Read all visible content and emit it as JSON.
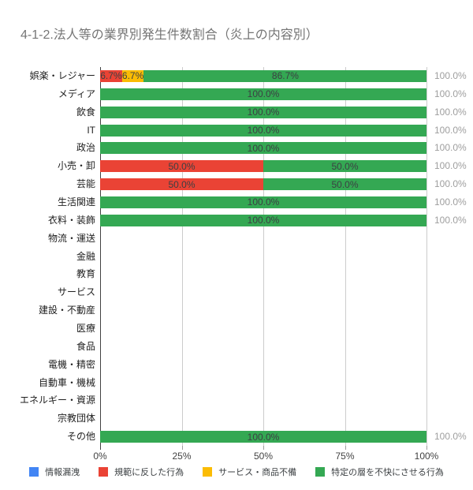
{
  "title": "4-1-2.法人等の業界別発生件数割合（炎上の内容別）",
  "theme": {
    "background": "#ffffff",
    "title_color": "#757575",
    "category_label_color": "#212121",
    "axis_label_color": "#424242",
    "grid_color": "#cccccc",
    "axis_line_color": "#424242",
    "tick_color": "#9e9e9e",
    "bar_label_color": "#3c4043",
    "total_label_color": "#9e9e9e",
    "legend_text_color": "#3c4043"
  },
  "chart_data": {
    "type": "bar",
    "orientation": "horizontal",
    "stacked": true,
    "unit": "%",
    "xlim": [
      0,
      100
    ],
    "grid": true,
    "legend_position": "bottom",
    "title": "4-1-2.法人等の業界別発生件数割合（炎上の内容別）",
    "x_ticks": [
      {
        "value": 0,
        "label": "0%"
      },
      {
        "value": 25,
        "label": "25%"
      },
      {
        "value": 50,
        "label": "50%"
      },
      {
        "value": 75,
        "label": "75%"
      },
      {
        "value": 100,
        "label": "100%"
      }
    ],
    "categories": [
      "娯楽・レジャー",
      "メディア",
      "飲食",
      "IT",
      "政治",
      "小売・卸",
      "芸能",
      "生活関連",
      "衣料・装飾",
      "物流・運送",
      "金融",
      "教育",
      "サービス",
      "建設・不動産",
      "医療",
      "食品",
      "電機・精密",
      "自動車・機械",
      "エネルギー・資源",
      "宗教団体",
      "その他"
    ],
    "series": [
      {
        "name": "情報漏洩",
        "color": "#4285f4",
        "values": [
          0,
          0,
          0,
          0,
          0,
          0,
          0,
          0,
          0,
          0,
          0,
          0,
          0,
          0,
          0,
          0,
          0,
          0,
          0,
          0,
          0
        ]
      },
      {
        "name": "規範に反した行為",
        "color": "#ea4335",
        "values": [
          6.7,
          0,
          0,
          0,
          0,
          50,
          50,
          0,
          0,
          0,
          0,
          0,
          0,
          0,
          0,
          0,
          0,
          0,
          0,
          0,
          0
        ]
      },
      {
        "name": "サービス・商品不備",
        "color": "#fbbc04",
        "values": [
          6.7,
          0,
          0,
          0,
          0,
          0,
          0,
          0,
          0,
          0,
          0,
          0,
          0,
          0,
          0,
          0,
          0,
          0,
          0,
          0,
          0
        ]
      },
      {
        "name": "特定の層を不快にさせる行為",
        "color": "#34a853",
        "values": [
          86.7,
          100,
          100,
          100,
          100,
          50,
          50,
          100,
          100,
          0,
          0,
          0,
          0,
          0,
          0,
          0,
          0,
          0,
          0,
          0,
          100
        ]
      }
    ],
    "totals": [
      "100.0%",
      "100.0%",
      "100.0%",
      "100.0%",
      "100.0%",
      "100.0%",
      "100.0%",
      "100.0%",
      "100.0%",
      "",
      "",
      "",
      "",
      "",
      "",
      "",
      "",
      "",
      "",
      "",
      "100.0%"
    ]
  }
}
